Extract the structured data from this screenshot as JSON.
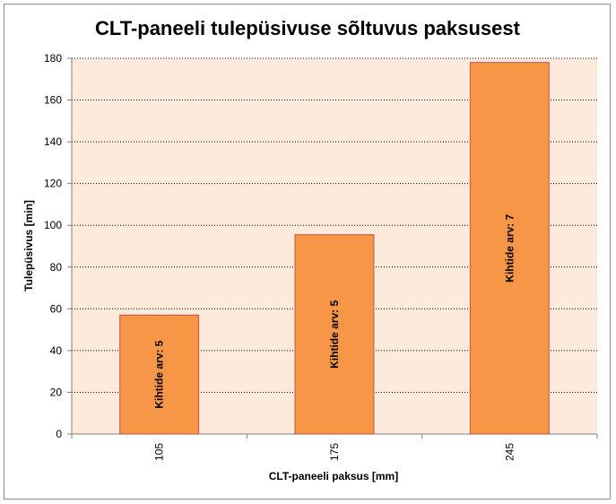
{
  "chart_data": {
    "type": "bar",
    "title": "CLT-paneeli tulepüsivuse sõltuvus paksusest",
    "xlabel": "CLT-paneeli paksus [mm]",
    "ylabel": "Tulepüsivus [min]",
    "categories": [
      "105",
      "175",
      "245"
    ],
    "values": [
      57,
      95.5,
      178
    ],
    "bar_labels": [
      "Kihtide  arv: 5",
      "Kihtide  arv: 5",
      "Kihtide  arv: 7"
    ],
    "ylim": [
      0,
      180
    ],
    "yticks": [
      0,
      20,
      40,
      60,
      80,
      100,
      120,
      140,
      160,
      180
    ],
    "grid": true,
    "colors": {
      "bar_fill": "#f79646",
      "bar_stroke": "#c0504d",
      "plot_background": "#fdeada",
      "gridline": "#000000",
      "axis": "#7f7f7f"
    }
  }
}
